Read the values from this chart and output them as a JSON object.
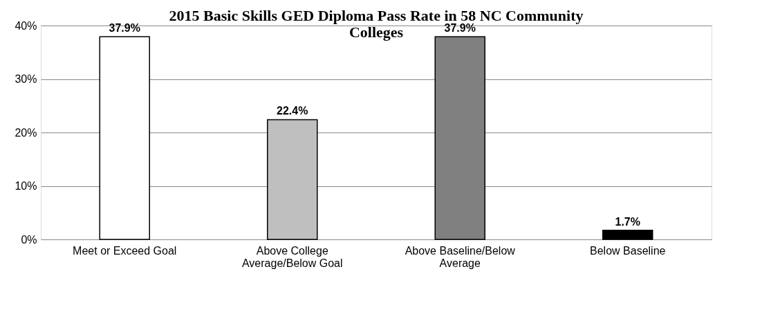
{
  "chart_data": {
    "type": "bar",
    "title": "2015  Basic Skills GED Diploma Pass Rate in 58 NC Community Colleges",
    "categories": [
      "Meet or Exceed Goal",
      "Above College Average/Below Goal",
      "Above Baseline/Below Average",
      "Below Baseline"
    ],
    "values": [
      37.9,
      22.4,
      37.9,
      1.7
    ],
    "colors": [
      "#ffffff",
      "#bfbfbf",
      "#808080",
      "#000000"
    ],
    "value_labels": [
      "37.9%",
      "22.4%",
      "37.9%",
      "1.7%"
    ],
    "ylim": [
      0,
      40
    ],
    "yticks": [
      {
        "value": 0,
        "label": "0%"
      },
      {
        "value": 10,
        "label": "10%"
      },
      {
        "value": 20,
        "label": "20%"
      },
      {
        "value": 30,
        "label": "30%"
      },
      {
        "value": 40,
        "label": "40%"
      }
    ],
    "grid": "y",
    "legend": false
  }
}
